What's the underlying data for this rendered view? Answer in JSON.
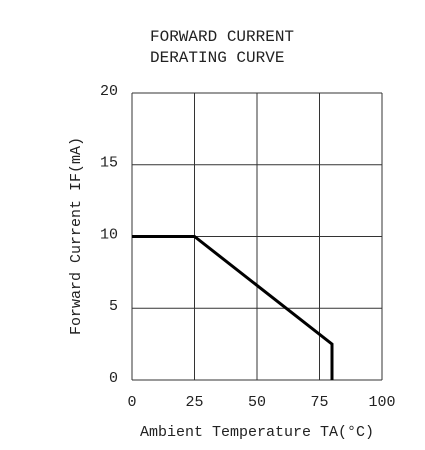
{
  "chart_data": {
    "type": "line",
    "title": [
      "FORWARD CURRENT",
      "DERATING CURVE"
    ],
    "x_label": "Ambient Temperature TA(°C)",
    "y_label": "Forward Current IF(mA)",
    "x": [
      0,
      25,
      80,
      80
    ],
    "series": [
      {
        "name": "IF",
        "color": "#000000",
        "values": [
          10,
          10,
          2.5,
          0
        ]
      }
    ],
    "xlim": [
      0,
      100
    ],
    "xticks": [
      0,
      25,
      50,
      75,
      100
    ],
    "ylim": [
      0,
      20
    ],
    "yticks": [
      0,
      5,
      10,
      15,
      20
    ],
    "grid": true
  }
}
